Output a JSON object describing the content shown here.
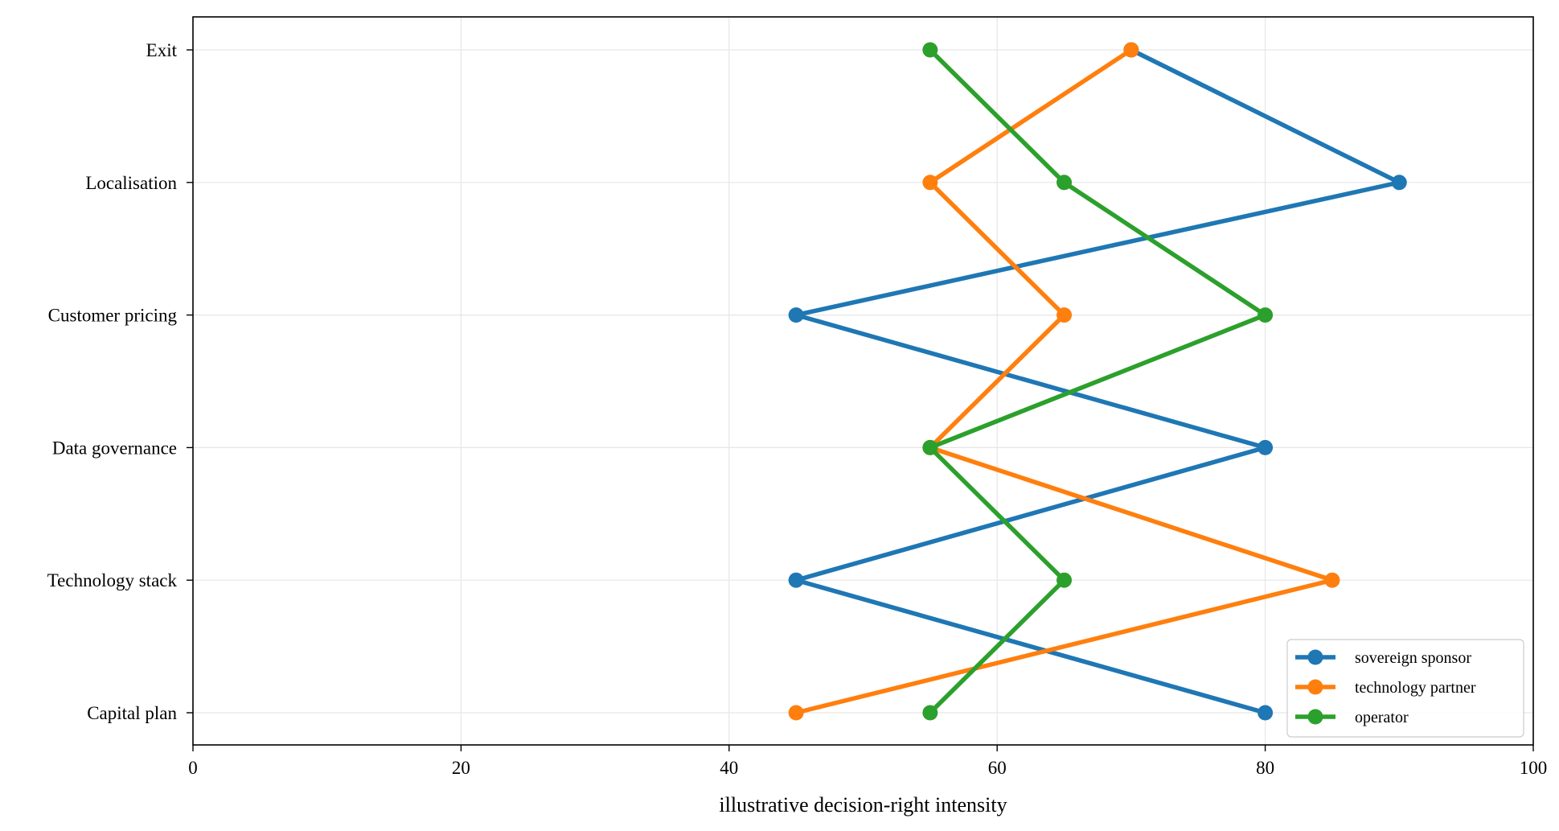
{
  "chart_data": {
    "type": "line",
    "orientation": "horizontal",
    "categories": [
      "Capital plan",
      "Technology stack",
      "Data governance",
      "Customer pricing",
      "Localisation",
      "Exit"
    ],
    "series": [
      {
        "name": "sovereign sponsor",
        "color": "#1f77b4",
        "values": [
          80,
          45,
          80,
          45,
          90,
          70
        ]
      },
      {
        "name": "technology partner",
        "color": "#ff7f0e",
        "values": [
          45,
          85,
          55,
          65,
          55,
          70
        ]
      },
      {
        "name": "operator",
        "color": "#2ca02c",
        "values": [
          55,
          65,
          55,
          80,
          65,
          55
        ]
      }
    ],
    "xlabel": "illustrative decision-right intensity",
    "ylabel": "",
    "xlim": [
      0,
      100
    ],
    "xticks": [
      "0",
      "20",
      "40",
      "60",
      "80",
      "100"
    ],
    "grid": true,
    "legend_position": "lower-right"
  }
}
